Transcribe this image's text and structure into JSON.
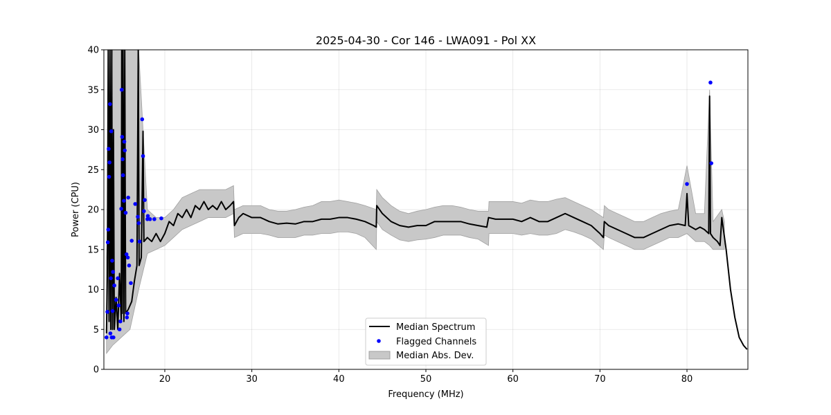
{
  "chart_data": {
    "type": "line",
    "title": "2025-04-30 - Cor 146 - LWA091 - Pol XX",
    "xlabel": "Frequency (MHz)",
    "ylabel": "Power (CPU)",
    "xlim": [
      13,
      87
    ],
    "ylim": [
      0,
      40
    ],
    "xticks": [
      20,
      30,
      40,
      50,
      60,
      70,
      80
    ],
    "yticks": [
      0,
      5,
      10,
      15,
      20,
      25,
      30,
      35,
      40
    ],
    "grid": true,
    "legend_position": "bottom-center",
    "colors": {
      "median": "#000000",
      "flagged": "#0000ff",
      "mad_fill": "#c8c8c8",
      "mad_edge": "#a0a0a0"
    },
    "legend": [
      "Median Spectrum",
      "Flagged Channels",
      "Median Abs. Dev."
    ],
    "series": [
      {
        "name": "Median Spectrum",
        "type": "line",
        "points": [
          [
            13.3,
            4.5
          ],
          [
            13.4,
            12
          ],
          [
            13.5,
            40
          ],
          [
            13.6,
            6
          ],
          [
            13.7,
            40
          ],
          [
            13.8,
            5
          ],
          [
            13.9,
            40
          ],
          [
            14.0,
            5
          ],
          [
            14.1,
            30
          ],
          [
            14.2,
            5
          ],
          [
            14.4,
            9
          ],
          [
            14.6,
            5
          ],
          [
            14.8,
            12
          ],
          [
            15.0,
            6
          ],
          [
            15.05,
            40
          ],
          [
            15.1,
            7
          ],
          [
            15.2,
            40
          ],
          [
            15.3,
            6
          ],
          [
            15.4,
            40
          ],
          [
            15.5,
            7
          ],
          [
            15.8,
            7.5
          ],
          [
            16.2,
            8.5
          ],
          [
            16.5,
            11
          ],
          [
            16.8,
            13
          ],
          [
            16.95,
            40
          ],
          [
            17.05,
            13
          ],
          [
            17.3,
            14
          ],
          [
            17.5,
            29.8
          ],
          [
            17.6,
            16
          ],
          [
            18,
            16.5
          ],
          [
            18.5,
            16
          ],
          [
            19,
            17
          ],
          [
            19.5,
            16
          ],
          [
            20,
            17
          ],
          [
            20.5,
            18.5
          ],
          [
            21,
            18
          ],
          [
            21.5,
            19.5
          ],
          [
            22,
            19
          ],
          [
            22.5,
            20
          ],
          [
            23,
            19
          ],
          [
            23.5,
            20.5
          ],
          [
            24,
            20
          ],
          [
            24.5,
            21
          ],
          [
            25,
            20
          ],
          [
            25.5,
            20.5
          ],
          [
            26,
            20
          ],
          [
            26.5,
            21
          ],
          [
            27,
            20
          ],
          [
            27.5,
            20.5
          ],
          [
            27.9,
            21
          ],
          [
            28,
            18
          ],
          [
            28.5,
            19
          ],
          [
            29,
            19.5
          ],
          [
            30,
            19
          ],
          [
            31,
            19
          ],
          [
            32,
            18.5
          ],
          [
            33,
            18.2
          ],
          [
            34,
            18.3
          ],
          [
            35,
            18.2
          ],
          [
            36,
            18.5
          ],
          [
            37,
            18.5
          ],
          [
            38,
            18.8
          ],
          [
            39,
            18.8
          ],
          [
            40,
            19
          ],
          [
            41,
            19
          ],
          [
            42,
            18.8
          ],
          [
            43,
            18.5
          ],
          [
            44,
            18
          ],
          [
            44.3,
            17.8
          ],
          [
            44.35,
            20.5
          ],
          [
            45,
            19.5
          ],
          [
            46,
            18.5
          ],
          [
            47,
            18
          ],
          [
            48,
            17.8
          ],
          [
            49,
            18
          ],
          [
            50,
            18
          ],
          [
            51,
            18.5
          ],
          [
            52,
            18.5
          ],
          [
            53,
            18.5
          ],
          [
            54,
            18.5
          ],
          [
            55,
            18.2
          ],
          [
            56,
            18
          ],
          [
            57,
            17.8
          ],
          [
            57.2,
            19
          ],
          [
            58,
            18.8
          ],
          [
            59,
            18.8
          ],
          [
            60,
            18.8
          ],
          [
            61,
            18.5
          ],
          [
            62,
            19
          ],
          [
            63,
            18.5
          ],
          [
            64,
            18.5
          ],
          [
            65,
            19
          ],
          [
            66,
            19.5
          ],
          [
            67,
            19
          ],
          [
            68,
            18.5
          ],
          [
            69,
            18
          ],
          [
            70,
            17
          ],
          [
            70.4,
            16.5
          ],
          [
            70.5,
            18.5
          ],
          [
            71,
            18
          ],
          [
            72,
            17.5
          ],
          [
            73,
            17
          ],
          [
            74,
            16.5
          ],
          [
            75,
            16.5
          ],
          [
            76,
            17
          ],
          [
            77,
            17.5
          ],
          [
            78,
            18
          ],
          [
            79,
            18.2
          ],
          [
            79.8,
            18
          ],
          [
            80,
            22
          ],
          [
            80.2,
            18
          ],
          [
            81,
            17.5
          ],
          [
            81.5,
            17.8
          ],
          [
            82,
            17.5
          ],
          [
            82.5,
            17
          ],
          [
            82.6,
            34.2
          ],
          [
            82.7,
            17
          ],
          [
            83,
            16.5
          ],
          [
            83.5,
            16
          ],
          [
            83.8,
            15.5
          ],
          [
            84,
            19
          ],
          [
            84.5,
            15
          ],
          [
            85,
            10
          ],
          [
            85.5,
            6.5
          ],
          [
            86,
            4
          ],
          [
            86.5,
            3
          ],
          [
            86.9,
            2.5
          ]
        ]
      },
      {
        "name": "Flagged Channels",
        "type": "scatter",
        "points": [
          [
            13.3,
            4
          ],
          [
            13.4,
            7.2
          ],
          [
            13.45,
            15.9
          ],
          [
            13.5,
            17.5
          ],
          [
            13.55,
            27.6
          ],
          [
            13.6,
            24.1
          ],
          [
            13.65,
            25.9
          ],
          [
            13.7,
            33.2
          ],
          [
            13.75,
            4.5
          ],
          [
            13.8,
            11.4
          ],
          [
            13.85,
            29.8
          ],
          [
            13.9,
            4
          ],
          [
            13.95,
            13.6
          ],
          [
            14.0,
            7.3
          ],
          [
            14.05,
            12.2
          ],
          [
            14.1,
            4
          ],
          [
            14.2,
            10.5
          ],
          [
            14.4,
            8.7
          ],
          [
            14.6,
            11.4
          ],
          [
            14.7,
            8
          ],
          [
            14.8,
            5
          ],
          [
            14.9,
            6
          ],
          [
            15.0,
            20.1
          ],
          [
            15.05,
            35
          ],
          [
            15.1,
            29.1
          ],
          [
            15.15,
            26.3
          ],
          [
            15.2,
            24.3
          ],
          [
            15.3,
            21.1
          ],
          [
            15.35,
            28.5
          ],
          [
            15.4,
            27.4
          ],
          [
            15.5,
            19.6
          ],
          [
            15.6,
            14.4
          ],
          [
            15.65,
            6.5
          ],
          [
            15.7,
            7
          ],
          [
            15.75,
            14
          ],
          [
            15.8,
            21.5
          ],
          [
            15.9,
            13
          ],
          [
            16.1,
            10.8
          ],
          [
            16.2,
            16.1
          ],
          [
            16.6,
            20.7
          ],
          [
            16.9,
            19.1
          ],
          [
            17.0,
            18.3
          ],
          [
            17.1,
            16
          ],
          [
            17.4,
            31.3
          ],
          [
            17.5,
            26.7
          ],
          [
            17.6,
            19.8
          ],
          [
            17.7,
            21.2
          ],
          [
            18.0,
            18.8
          ],
          [
            18.05,
            19.2
          ],
          [
            18.3,
            18.8
          ],
          [
            18.8,
            18.8
          ],
          [
            19.6,
            18.9
          ],
          [
            80.0,
            23.2
          ],
          [
            82.7,
            35.9
          ],
          [
            82.8,
            25.8
          ]
        ]
      },
      {
        "name": "Median Abs. Dev.",
        "type": "band",
        "points": [
          [
            13.3,
            2,
            14
          ],
          [
            14,
            3,
            40
          ],
          [
            15,
            4,
            40
          ],
          [
            16,
            5,
            40
          ],
          [
            17,
            10,
            40
          ],
          [
            18,
            14.5,
            20
          ],
          [
            19,
            15,
            19
          ],
          [
            20,
            15.5,
            19
          ],
          [
            21,
            16.5,
            20
          ],
          [
            22,
            17.5,
            21.5
          ],
          [
            23,
            18,
            22
          ],
          [
            24,
            18.5,
            22.5
          ],
          [
            25,
            19,
            22.5
          ],
          [
            26,
            19,
            22.5
          ],
          [
            27,
            19,
            22.5
          ],
          [
            27.9,
            19.5,
            23
          ],
          [
            28,
            16.5,
            20
          ],
          [
            29,
            17,
            20.5
          ],
          [
            30,
            17,
            20.5
          ],
          [
            31,
            17,
            20.5
          ],
          [
            32,
            16.8,
            20
          ],
          [
            33,
            16.5,
            19.8
          ],
          [
            34,
            16.5,
            19.8
          ],
          [
            35,
            16.5,
            20
          ],
          [
            36,
            16.8,
            20.3
          ],
          [
            37,
            16.8,
            20.5
          ],
          [
            38,
            17,
            21
          ],
          [
            39,
            17,
            21
          ],
          [
            40,
            17.2,
            21.2
          ],
          [
            41,
            17.2,
            21
          ],
          [
            42,
            17,
            20.8
          ],
          [
            43,
            16.5,
            20.5
          ],
          [
            44.3,
            15,
            20
          ],
          [
            44.35,
            18.5,
            22.5
          ],
          [
            45,
            17.5,
            21.5
          ],
          [
            46,
            16.8,
            20.5
          ],
          [
            47,
            16.2,
            19.8
          ],
          [
            48,
            16,
            19.5
          ],
          [
            49,
            16.2,
            19.8
          ],
          [
            50,
            16.3,
            20
          ],
          [
            51,
            16.5,
            20.3
          ],
          [
            52,
            16.8,
            20.5
          ],
          [
            53,
            16.8,
            20.5
          ],
          [
            54,
            16.8,
            20.3
          ],
          [
            55,
            16.5,
            20
          ],
          [
            56,
            16.3,
            19.8
          ],
          [
            57.2,
            15.5,
            19.8
          ],
          [
            57.25,
            17,
            21
          ],
          [
            58,
            17,
            21
          ],
          [
            59,
            17,
            21
          ],
          [
            60,
            17,
            21
          ],
          [
            61,
            16.8,
            20.8
          ],
          [
            62,
            17,
            21.2
          ],
          [
            63,
            16.8,
            21
          ],
          [
            64,
            16.8,
            21
          ],
          [
            65,
            17,
            21.3
          ],
          [
            66,
            17.5,
            21.5
          ],
          [
            67,
            17.2,
            21
          ],
          [
            68,
            16.8,
            20.5
          ],
          [
            69,
            16.3,
            20
          ],
          [
            70.4,
            15,
            19
          ],
          [
            70.5,
            16.8,
            20.5
          ],
          [
            71,
            16.5,
            20
          ],
          [
            72,
            16,
            19.5
          ],
          [
            73,
            15.5,
            19
          ],
          [
            74,
            15,
            18.5
          ],
          [
            75,
            15,
            18.5
          ],
          [
            76,
            15.5,
            19
          ],
          [
            77,
            16,
            19.5
          ],
          [
            78,
            16.5,
            19.8
          ],
          [
            79,
            16.5,
            20
          ],
          [
            80,
            17,
            25.5
          ],
          [
            81,
            16,
            19.5
          ],
          [
            82,
            16,
            19.5
          ],
          [
            82.6,
            15.5,
            35
          ],
          [
            83,
            15,
            18.5
          ],
          [
            84,
            15,
            20
          ],
          [
            84.3,
            15,
            18.5
          ]
        ]
      }
    ]
  }
}
